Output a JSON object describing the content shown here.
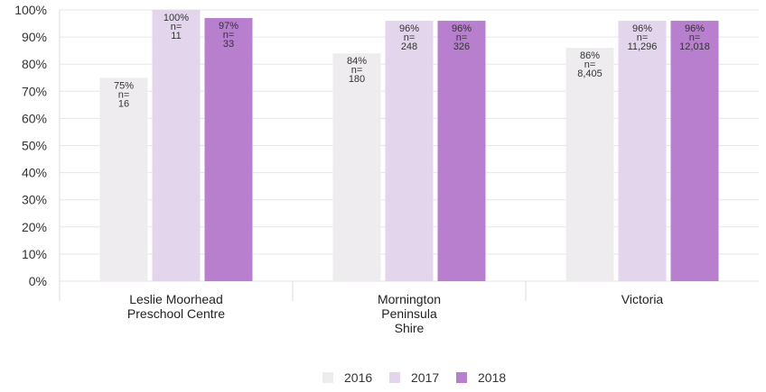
{
  "chart_data": {
    "type": "bar",
    "categories": [
      [
        "Leslie Moorhead",
        "Preschool Centre"
      ],
      [
        "Mornington",
        "Peninsula",
        "Shire"
      ],
      [
        "Victoria"
      ]
    ],
    "series": [
      {
        "name": "2016",
        "color": "#eeecef",
        "values": [
          75,
          84,
          86
        ],
        "labels": [
          [
            "75%",
            "n=",
            "16"
          ],
          [
            "84%",
            "n=",
            "180"
          ],
          [
            "86%",
            "n=",
            "8,405"
          ]
        ]
      },
      {
        "name": "2017",
        "color": "#e3d6ec",
        "values": [
          100,
          96,
          96
        ],
        "labels": [
          [
            "100%",
            "n=",
            "11"
          ],
          [
            "96%",
            "n=",
            "248"
          ],
          [
            "96%",
            "n=",
            "11,296"
          ]
        ]
      },
      {
        "name": "2018",
        "color": "#b87fcf",
        "values": [
          97,
          96,
          96
        ],
        "labels": [
          [
            "97%",
            "n=",
            "33"
          ],
          [
            "96%",
            "n=",
            "326"
          ],
          [
            "96%",
            "n=",
            "12,018"
          ]
        ]
      }
    ],
    "ylim": [
      0,
      100
    ],
    "yticks": [
      "0%",
      "10%",
      "20%",
      "30%",
      "40%",
      "50%",
      "60%",
      "70%",
      "80%",
      "90%",
      "100%"
    ],
    "grid": true,
    "legend_position": "bottom-center",
    "gridline_color": "#e6e6e6"
  }
}
